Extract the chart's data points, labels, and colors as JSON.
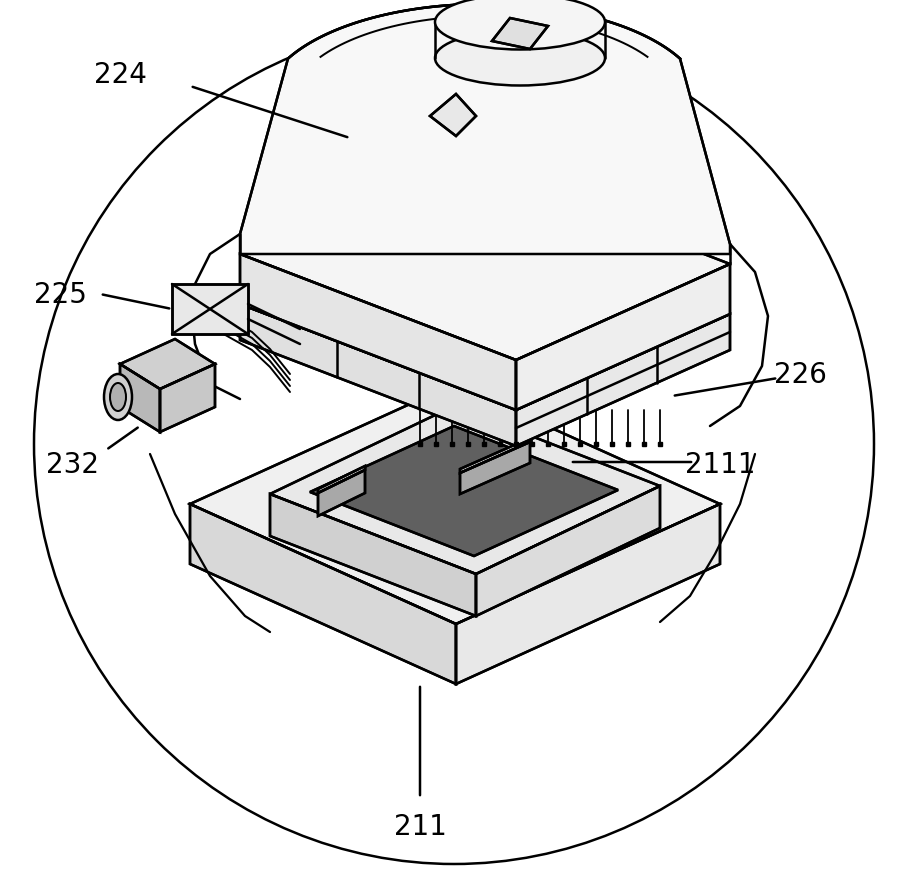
{
  "background_color": "#ffffff",
  "line_color": "#000000",
  "line_width": 1.8,
  "fig_width": 9.08,
  "fig_height": 8.95,
  "label_fontsize": 20
}
